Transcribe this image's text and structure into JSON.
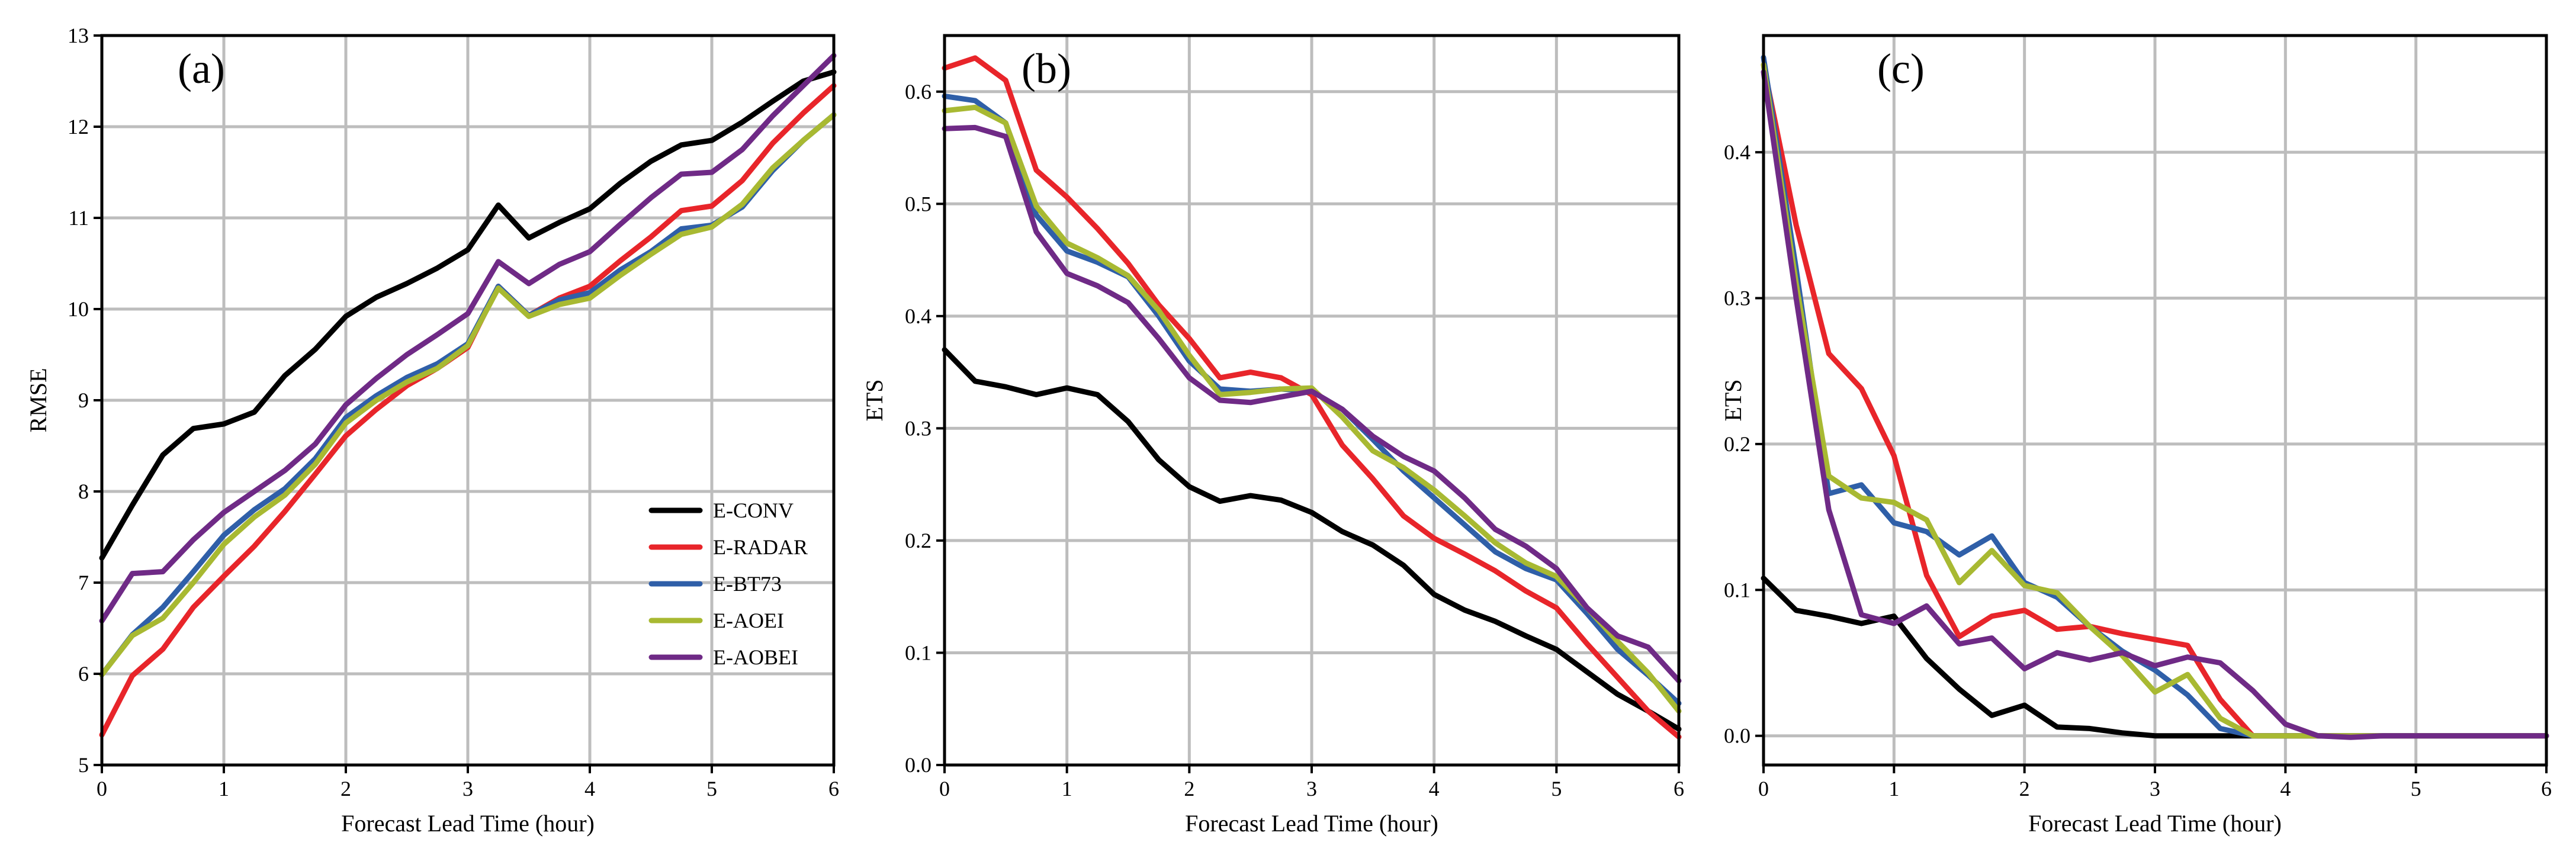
{
  "chart_data": [
    {
      "type": "line",
      "panel_label": "(a)",
      "xlabel": "Forecast Lead Time (hour)",
      "ylabel": "RMSE",
      "xlim": [
        0,
        6
      ],
      "ylim": [
        5,
        13
      ],
      "xticks": [
        0,
        1,
        2,
        3,
        4,
        5,
        6
      ],
      "yticks": [
        5,
        6,
        7,
        8,
        9,
        10,
        11,
        12,
        13
      ],
      "grid": true,
      "legend": {
        "placement": "lower-right"
      },
      "x": [
        0,
        0.25,
        0.5,
        0.75,
        1,
        1.25,
        1.5,
        1.75,
        2,
        2.25,
        2.5,
        2.75,
        3,
        3.25,
        3.5,
        3.75,
        4,
        4.25,
        4.5,
        4.75,
        5,
        5.25,
        5.5,
        5.75,
        6
      ],
      "series": [
        {
          "name": "E-CONV",
          "color": "#000000",
          "values": [
            7.27,
            7.85,
            8.4,
            8.69,
            8.74,
            8.87,
            9.27,
            9.56,
            9.92,
            10.13,
            10.28,
            10.45,
            10.65,
            11.14,
            10.78,
            10.95,
            11.1,
            11.38,
            11.62,
            11.8,
            11.85,
            12.05,
            12.28,
            12.5,
            12.6
          ]
        },
        {
          "name": "E-RADAR",
          "color": "#e8252a",
          "values": [
            5.33,
            5.98,
            6.27,
            6.73,
            7.07,
            7.4,
            7.78,
            8.19,
            8.61,
            8.9,
            9.16,
            9.35,
            9.58,
            10.25,
            9.93,
            10.12,
            10.25,
            10.53,
            10.79,
            11.08,
            11.13,
            11.41,
            11.82,
            12.15,
            12.45
          ]
        },
        {
          "name": "E-BT73",
          "color": "#2f5fa8",
          "values": [
            5.99,
            6.43,
            6.73,
            7.12,
            7.52,
            7.8,
            8.03,
            8.36,
            8.81,
            9.05,
            9.25,
            9.4,
            9.62,
            10.25,
            9.93,
            10.1,
            10.18,
            10.43,
            10.63,
            10.88,
            10.92,
            11.12,
            11.52,
            11.85,
            12.13
          ]
        },
        {
          "name": "E-AOEI",
          "color": "#a8b932",
          "values": [
            5.99,
            6.42,
            6.61,
            7.0,
            7.42,
            7.72,
            7.96,
            8.3,
            8.75,
            9.0,
            9.2,
            9.35,
            9.6,
            10.23,
            9.92,
            10.05,
            10.12,
            10.37,
            10.6,
            10.82,
            10.9,
            11.15,
            11.55,
            11.85,
            12.13
          ]
        },
        {
          "name": "E-AOBEI",
          "color": "#6f2a86",
          "values": [
            6.58,
            7.1,
            7.12,
            7.47,
            7.77,
            8.0,
            8.23,
            8.52,
            8.95,
            9.24,
            9.5,
            9.72,
            9.95,
            10.52,
            10.28,
            10.49,
            10.63,
            10.93,
            11.22,
            11.48,
            11.5,
            11.75,
            12.12,
            12.45,
            12.78
          ]
        }
      ]
    },
    {
      "type": "line",
      "panel_label": "(b)",
      "xlabel": "Forecast Lead Time (hour)",
      "ylabel": "ETS",
      "xlim": [
        0,
        6
      ],
      "ylim": [
        0,
        0.65
      ],
      "xticks": [
        0,
        1,
        2,
        3,
        4,
        5,
        6
      ],
      "yticks": [
        0.0,
        0.1,
        0.2,
        0.3,
        0.4,
        0.5,
        0.6
      ],
      "grid": true,
      "x": [
        0,
        0.25,
        0.5,
        0.75,
        1,
        1.25,
        1.5,
        1.75,
        2,
        2.25,
        2.5,
        2.75,
        3,
        3.25,
        3.5,
        3.75,
        4,
        4.25,
        4.5,
        4.75,
        5,
        5.25,
        5.5,
        5.75,
        6
      ],
      "series": [
        {
          "name": "E-CONV",
          "color": "#000000",
          "values": [
            0.37,
            0.342,
            0.337,
            0.33,
            0.336,
            0.33,
            0.306,
            0.272,
            0.248,
            0.235,
            0.24,
            0.236,
            0.225,
            0.208,
            0.196,
            0.178,
            0.152,
            0.138,
            0.128,
            0.115,
            0.103,
            0.083,
            0.063,
            0.048,
            0.032
          ]
        },
        {
          "name": "E-RADAR",
          "color": "#e8252a",
          "values": [
            0.621,
            0.63,
            0.61,
            0.53,
            0.506,
            0.478,
            0.447,
            0.41,
            0.38,
            0.345,
            0.35,
            0.345,
            0.33,
            0.285,
            0.255,
            0.222,
            0.202,
            0.188,
            0.173,
            0.155,
            0.14,
            0.108,
            0.078,
            0.048,
            0.025
          ]
        },
        {
          "name": "E-BT73",
          "color": "#2f5fa8",
          "values": [
            0.596,
            0.592,
            0.572,
            0.49,
            0.458,
            0.448,
            0.435,
            0.4,
            0.36,
            0.335,
            0.333,
            0.335,
            0.333,
            0.317,
            0.29,
            0.262,
            0.238,
            0.214,
            0.19,
            0.175,
            0.165,
            0.135,
            0.103,
            0.08,
            0.055
          ]
        },
        {
          "name": "E-AOEI",
          "color": "#a8b932",
          "values": [
            0.583,
            0.586,
            0.572,
            0.498,
            0.465,
            0.452,
            0.436,
            0.405,
            0.365,
            0.33,
            0.332,
            0.335,
            0.336,
            0.31,
            0.28,
            0.265,
            0.245,
            0.222,
            0.198,
            0.18,
            0.168,
            0.14,
            0.11,
            0.082,
            0.048
          ]
        },
        {
          "name": "E-AOBEI",
          "color": "#6f2a86",
          "values": [
            0.567,
            0.568,
            0.56,
            0.475,
            0.438,
            0.427,
            0.412,
            0.38,
            0.345,
            0.325,
            0.323,
            0.328,
            0.333,
            0.317,
            0.293,
            0.275,
            0.262,
            0.238,
            0.21,
            0.195,
            0.175,
            0.14,
            0.115,
            0.105,
            0.075
          ]
        }
      ]
    },
    {
      "type": "line",
      "panel_label": "(c)",
      "xlabel": "Forecast Lead Time (hour)",
      "ylabel": "ETS",
      "xlim": [
        0,
        6
      ],
      "ylim": [
        -0.02,
        0.48
      ],
      "xticks": [
        0,
        1,
        2,
        3,
        4,
        5,
        6
      ],
      "yticks": [
        0.0,
        0.1,
        0.2,
        0.3,
        0.4
      ],
      "grid": true,
      "x": [
        0,
        0.25,
        0.5,
        0.75,
        1,
        1.25,
        1.5,
        1.75,
        2,
        2.25,
        2.5,
        2.75,
        3,
        3.25,
        3.5,
        3.75,
        4,
        4.25,
        4.5,
        4.75,
        5,
        5.25,
        5.5,
        5.75,
        6
      ],
      "series": [
        {
          "name": "E-CONV",
          "color": "#000000",
          "values": [
            0.108,
            0.086,
            0.082,
            0.077,
            0.082,
            0.053,
            0.032,
            0.014,
            0.021,
            0.006,
            0.005,
            0.002,
            0.0,
            0.0,
            0.0,
            0.0,
            0.0,
            0.0,
            0.0,
            0.0,
            0.0,
            0.0,
            0.0,
            0.0,
            0.0
          ]
        },
        {
          "name": "E-RADAR",
          "color": "#e8252a",
          "values": [
            0.46,
            0.35,
            0.262,
            0.238,
            0.192,
            0.11,
            0.068,
            0.082,
            0.086,
            0.073,
            0.075,
            0.07,
            0.066,
            0.062,
            0.025,
            0.0,
            0.0,
            0.0,
            0.0,
            0.0,
            0.0,
            0.0,
            0.0,
            0.0,
            0.0
          ]
        },
        {
          "name": "E-BT73",
          "color": "#2f5fa8",
          "values": [
            0.465,
            0.32,
            0.166,
            0.172,
            0.146,
            0.14,
            0.124,
            0.137,
            0.105,
            0.095,
            0.075,
            0.058,
            0.045,
            0.028,
            0.005,
            0.0,
            0.0,
            0.0,
            0.0,
            0.0,
            0.0,
            0.0,
            0.0,
            0.0,
            0.0
          ]
        },
        {
          "name": "E-AOEI",
          "color": "#a8b932",
          "values": [
            0.46,
            0.31,
            0.178,
            0.163,
            0.16,
            0.148,
            0.105,
            0.127,
            0.103,
            0.098,
            0.075,
            0.055,
            0.03,
            0.042,
            0.012,
            0.0,
            0.0,
            0.0,
            0.0,
            0.0,
            0.0,
            0.0,
            0.0,
            0.0,
            0.0
          ]
        },
        {
          "name": "E-AOBEI",
          "color": "#6f2a86",
          "values": [
            0.455,
            0.3,
            0.155,
            0.083,
            0.077,
            0.089,
            0.063,
            0.067,
            0.046,
            0.057,
            0.052,
            0.057,
            0.048,
            0.054,
            0.05,
            0.031,
            0.008,
            0.0,
            -0.001,
            0.0,
            0.0,
            0.0,
            0.0,
            0.0,
            0.0
          ]
        }
      ]
    }
  ]
}
